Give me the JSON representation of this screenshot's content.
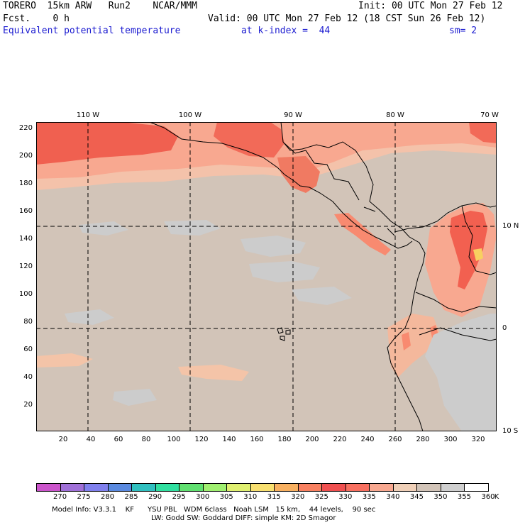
{
  "header": {
    "title_left": "TORERO  15km ARW   Run2    NCAR/MMM",
    "init": "Init: 00 UTC Mon 27 Feb 12",
    "fcst": "Fcst.    0 h",
    "valid": "Valid: 00 UTC Mon 27 Feb 12 (18 CST Sun 26 Feb 12)",
    "field": "Equivalent potential temperature",
    "level": "at k-index =  44",
    "smooth": "sm= 2"
  },
  "axes": {
    "top_ticks": [
      "110 W",
      "100 W",
      "90 W",
      "80 W",
      "70 W"
    ],
    "right_ticks": [
      "10 N",
      "0",
      "10 S"
    ],
    "left_ticks": [
      "220",
      "200",
      "180",
      "160",
      "140",
      "120",
      "100",
      "80",
      "60",
      "40",
      "20"
    ],
    "bottom_ticks": [
      "20",
      "40",
      "60",
      "80",
      "100",
      "120",
      "140",
      "160",
      "180",
      "200",
      "220",
      "240",
      "260",
      "280",
      "300",
      "320"
    ]
  },
  "colorbar": {
    "labels": [
      "270",
      "275",
      "280",
      "285",
      "290",
      "295",
      "300",
      "305",
      "310",
      "315",
      "320",
      "325",
      "330",
      "335",
      "340",
      "345",
      "350",
      "355",
      "360"
    ],
    "unit": "K",
    "colors": [
      "#cc55cc",
      "#a070d8",
      "#8080ee",
      "#5a8ae0",
      "#30c0c0",
      "#30e0a0",
      "#60e070",
      "#a0f070",
      "#e0f070",
      "#f8e070",
      "#f8b060",
      "#f88060",
      "#f05050",
      "#f87060",
      "#f8a890",
      "#f0d0b8",
      "#d2c4b8",
      "#cfcfcf",
      "#ffffff"
    ]
  },
  "footer": {
    "line1": "Model Info: V3.3.1    KF      YSU PBL   WDM 6class   Noah LSM   15 km,    44 levels,    90 sec",
    "line2": "LW: Godd SW: Goddard DIFF: simple KM: 2D Smagor"
  }
}
